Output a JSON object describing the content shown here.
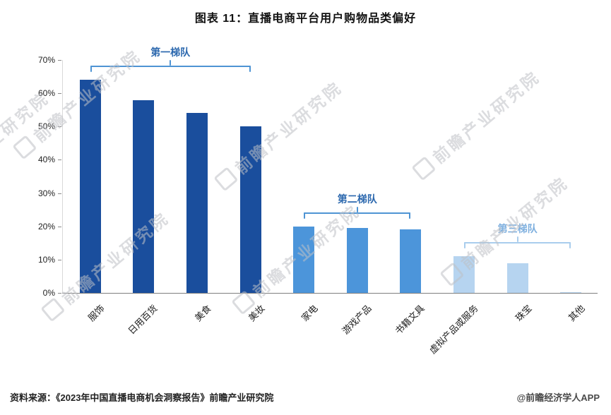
{
  "title": "图表 11：直播电商平台用户购物品类偏好",
  "watermark_text": "前瞻产业研究院",
  "footer": {
    "source": "资料来源：《2023年中国直播电商机会洞察报告》前瞻产业研究院",
    "credit": "@前瞻经济学人APP"
  },
  "chart_data": {
    "type": "bar",
    "title": "图表 11：直播电商平台用户购物品类偏好",
    "categories": [
      "服饰",
      "日用百货",
      "美食",
      "美妆",
      "家电",
      "游戏产品",
      "书籍文具",
      "虚拟产品或服务",
      "珠宝",
      "其他"
    ],
    "values": [
      64,
      58,
      54,
      50,
      20,
      19.5,
      19,
      11,
      9,
      0.3
    ],
    "unit": "%",
    "ylim": [
      0,
      70
    ],
    "yticks": [
      "0%",
      "10%",
      "20%",
      "30%",
      "40%",
      "50%",
      "60%",
      "70%"
    ],
    "grid": false,
    "legend": "none",
    "xlabel": "",
    "ylabel": "",
    "tiers": [
      {
        "label": "第一梯队",
        "start": 0,
        "end": 3,
        "bar_color": "#1A4E9D",
        "bracket_color": "#4E94D4",
        "label_color": "#2C68AE"
      },
      {
        "label": "第二梯队",
        "start": 4,
        "end": 6,
        "bar_color": "#4C95DA",
        "bracket_color": "#4E94D4",
        "label_color": "#2C68AE"
      },
      {
        "label": "第三梯队",
        "start": 7,
        "end": 9,
        "bar_color": "#B6D4F0",
        "bracket_color": "#A9CDED",
        "label_color": "#7FB0DF"
      }
    ]
  }
}
